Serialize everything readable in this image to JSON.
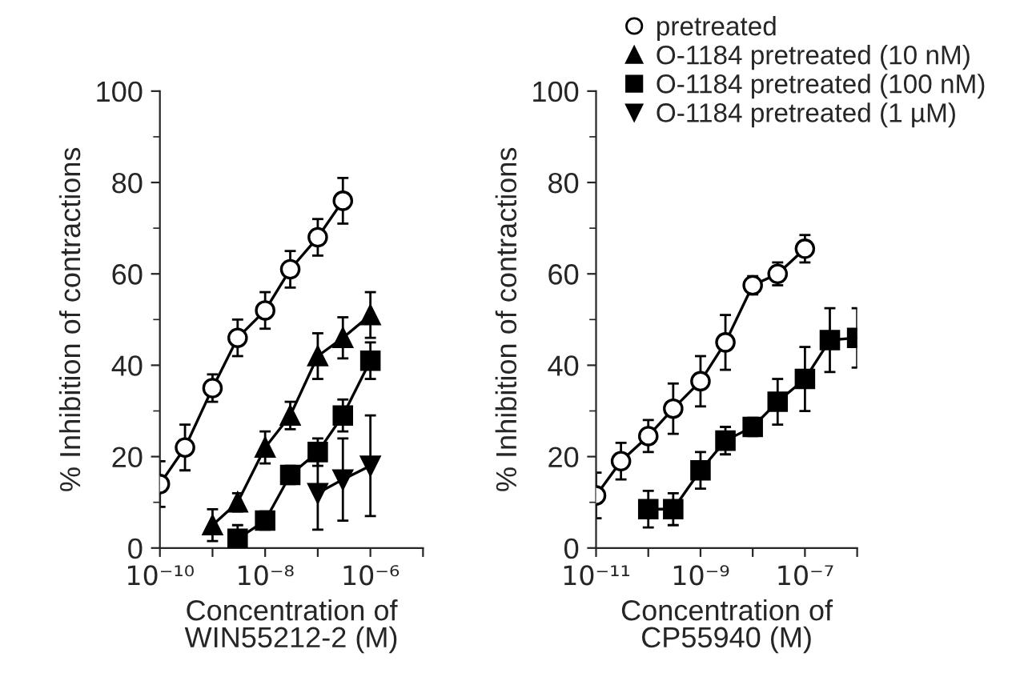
{
  "chart_data": [
    {
      "type": "line",
      "xlabel": "Concentration of\nWIN55212-2 (M)",
      "ylabel": "% Inhibition of contractions",
      "log": "x",
      "xlim": [
        1e-10,
        1e-05
      ],
      "ylim": [
        0,
        100
      ],
      "xticks": [
        {
          "value": 1e-10,
          "label": "10⁻¹⁰"
        },
        {
          "value": 1e-09,
          "label": null
        },
        {
          "value": 1e-08,
          "label": "10⁻⁸"
        },
        {
          "value": 1e-07,
          "label": null
        },
        {
          "value": 1e-06,
          "label": "10⁻⁶"
        },
        {
          "value": 1e-05,
          "label": null
        }
      ],
      "yticks": [
        0,
        20,
        40,
        60,
        80,
        100
      ],
      "grid": false,
      "legend": "top right",
      "line_style": "solid",
      "series": [
        {
          "name": "pretreated",
          "color": "#000000",
          "marker": "circle",
          "x": [
            1e-10,
            3e-10,
            1e-09,
            3e-09,
            1e-08,
            3e-08,
            1e-07,
            3e-07
          ],
          "values": [
            14,
            22,
            35,
            46,
            52,
            61,
            68,
            76
          ],
          "errors": [
            5,
            5,
            3,
            4,
            4,
            4,
            4,
            5
          ]
        },
        {
          "name": "O-1184 pretreated (10 nM)",
          "color": "#000000",
          "marker": "triangle",
          "x": [
            1e-09,
            3e-09,
            1e-08,
            3e-08,
            1e-07,
            3e-07,
            1e-06
          ],
          "values": [
            5,
            10,
            22,
            29,
            42,
            46,
            51
          ],
          "errors": [
            3.5,
            2,
            3.5,
            3,
            5,
            4.5,
            5
          ]
        },
        {
          "name": "O-1184 pretreated (100 nM)",
          "color": "#000000",
          "marker": "square",
          "x": [
            3e-09,
            1e-08,
            3e-08,
            1e-07,
            3e-07,
            1e-06
          ],
          "values": [
            2,
            6,
            16,
            21,
            29,
            41
          ],
          "errors": [
            3,
            2,
            2,
            3,
            3.5,
            4
          ]
        },
        {
          "name": "O-1184 pretreated (1 µM)",
          "color": "#000000",
          "marker": "triangle_down",
          "x": [
            1e-07,
            3e-07,
            1e-06
          ],
          "values": [
            12,
            15,
            18
          ],
          "errors": [
            8,
            9,
            11
          ]
        }
      ]
    },
    {
      "type": "line",
      "xlabel": "Concentration of\nCP55940 (M)",
      "ylabel": "% Inhibition of contractions",
      "log": "x",
      "xlim": [
        1e-11,
        1e-06
      ],
      "ylim": [
        0,
        100
      ],
      "xticks": [
        {
          "value": 1e-11,
          "label": "10⁻¹¹"
        },
        {
          "value": 1e-10,
          "label": null
        },
        {
          "value": 1e-09,
          "label": "10⁻⁹"
        },
        {
          "value": 1e-08,
          "label": null
        },
        {
          "value": 1e-07,
          "label": "10⁻⁷"
        },
        {
          "value": 1e-06,
          "label": null
        }
      ],
      "yticks": [
        0,
        20,
        40,
        60,
        80,
        100
      ],
      "grid": false,
      "line_style": "solid",
      "series": [
        {
          "color": "#000000",
          "marker": "circle",
          "x": [
            1e-11,
            3e-11,
            1e-10,
            3e-10,
            1e-09,
            3e-09,
            1e-08,
            3e-08,
            1e-07
          ],
          "values": [
            11.5,
            19,
            24.5,
            30.5,
            36.5,
            45,
            57.5,
            60,
            65.5
          ],
          "errors": [
            5,
            4,
            3.5,
            5.5,
            5.5,
            6,
            2,
            2.5,
            3
          ]
        },
        {
          "color": "#000000",
          "marker": "square",
          "x": [
            1e-10,
            3e-10,
            1e-09,
            3e-09,
            1e-08,
            3e-08,
            1e-07,
            3e-07,
            1e-06
          ],
          "values": [
            8.5,
            8.5,
            17,
            23.5,
            26.5,
            32,
            37,
            45.5,
            46
          ],
          "errors": [
            4,
            3.5,
            4,
            3,
            2,
            5,
            7,
            7,
            6.5
          ]
        }
      ]
    }
  ]
}
